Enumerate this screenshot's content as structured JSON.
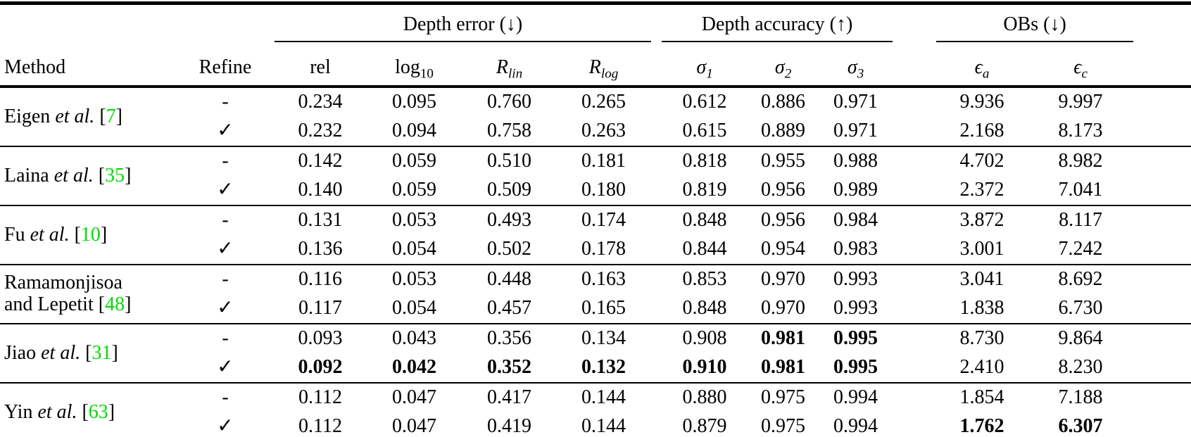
{
  "page": {
    "background": "#ffffff",
    "text_color": "#000000",
    "cite_color": "#00dd00",
    "rule_color": "#000000"
  },
  "table": {
    "header": {
      "method_label": "Method",
      "refine_label": "Refine",
      "groups": [
        {
          "label": "Depth error (↓)",
          "span": 4
        },
        {
          "label": "Depth accuracy (↑)",
          "span": 3
        },
        {
          "label": "OBs (↓)",
          "span": 2
        }
      ],
      "sub_columns": [
        {
          "id": "rel",
          "base": "rel",
          "sub": "",
          "italic": false
        },
        {
          "id": "log10",
          "base": "log",
          "sub": "10",
          "italic": false
        },
        {
          "id": "r-lin",
          "base": "R",
          "sub": "lin",
          "italic": true
        },
        {
          "id": "r-log",
          "base": "R",
          "sub": "log",
          "italic": true
        },
        {
          "id": "sigma1",
          "base": "σ",
          "sub": "1",
          "italic": true
        },
        {
          "id": "sigma2",
          "base": "σ",
          "sub": "2",
          "italic": true
        },
        {
          "id": "sigma3",
          "base": "σ",
          "sub": "3",
          "italic": true
        },
        {
          "id": "eps-a",
          "base": "ϵ",
          "sub": "a",
          "italic": true
        },
        {
          "id": "eps-c",
          "base": "ϵ",
          "sub": "c",
          "italic": true
        }
      ]
    },
    "groups": [
      {
        "method_parts": [
          {
            "text": "Eigen ",
            "style": "normal"
          },
          {
            "text": "et al.",
            "style": "italic"
          },
          {
            "text": " [",
            "style": "normal"
          },
          {
            "text": "7",
            "style": "cite"
          },
          {
            "text": "]",
            "style": "normal"
          }
        ],
        "rows": [
          {
            "refine": "-",
            "values": [
              "0.234",
              "0.095",
              "0.760",
              "0.265",
              "0.612",
              "0.886",
              "0.971",
              "9.936",
              "9.997"
            ],
            "bold": []
          },
          {
            "refine": "✓",
            "values": [
              "0.232",
              "0.094",
              "0.758",
              "0.263",
              "0.615",
              "0.889",
              "0.971",
              "2.168",
              "8.173"
            ],
            "bold": []
          }
        ]
      },
      {
        "method_parts": [
          {
            "text": "Laina ",
            "style": "normal"
          },
          {
            "text": "et al.",
            "style": "italic"
          },
          {
            "text": " [",
            "style": "normal"
          },
          {
            "text": "35",
            "style": "cite"
          },
          {
            "text": "]",
            "style": "normal"
          }
        ],
        "rows": [
          {
            "refine": "-",
            "values": [
              "0.142",
              "0.059",
              "0.510",
              "0.181",
              "0.818",
              "0.955",
              "0.988",
              "4.702",
              "8.982"
            ],
            "bold": []
          },
          {
            "refine": "✓",
            "values": [
              "0.140",
              "0.059",
              "0.509",
              "0.180",
              "0.819",
              "0.956",
              "0.989",
              "2.372",
              "7.041"
            ],
            "bold": []
          }
        ]
      },
      {
        "method_parts": [
          {
            "text": "Fu ",
            "style": "normal"
          },
          {
            "text": "et al.",
            "style": "italic"
          },
          {
            "text": " [",
            "style": "normal"
          },
          {
            "text": "10",
            "style": "cite"
          },
          {
            "text": "]",
            "style": "normal"
          }
        ],
        "rows": [
          {
            "refine": "-",
            "values": [
              "0.131",
              "0.053",
              "0.493",
              "0.174",
              "0.848",
              "0.956",
              "0.984",
              "3.872",
              "8.117"
            ],
            "bold": []
          },
          {
            "refine": "✓",
            "values": [
              "0.136",
              "0.054",
              "0.502",
              "0.178",
              "0.844",
              "0.954",
              "0.983",
              "3.001",
              "7.242"
            ],
            "bold": []
          }
        ]
      },
      {
        "method_parts": [
          {
            "text": "Ramamonjisoa",
            "style": "normal"
          },
          {
            "text": "",
            "style": "break"
          },
          {
            "text": "and Lepetit [",
            "style": "normal"
          },
          {
            "text": "48",
            "style": "cite"
          },
          {
            "text": "]",
            "style": "normal"
          }
        ],
        "rows": [
          {
            "refine": "-",
            "values": [
              "0.116",
              "0.053",
              "0.448",
              "0.163",
              "0.853",
              "0.970",
              "0.993",
              "3.041",
              "8.692"
            ],
            "bold": []
          },
          {
            "refine": "✓",
            "values": [
              "0.117",
              "0.054",
              "0.457",
              "0.165",
              "0.848",
              "0.970",
              "0.993",
              "1.838",
              "6.730"
            ],
            "bold": []
          }
        ]
      },
      {
        "method_parts": [
          {
            "text": "Jiao ",
            "style": "normal"
          },
          {
            "text": "et al.",
            "style": "italic"
          },
          {
            "text": " [",
            "style": "normal"
          },
          {
            "text": "31",
            "style": "cite"
          },
          {
            "text": "]",
            "style": "normal"
          }
        ],
        "rows": [
          {
            "refine": "-",
            "values": [
              "0.093",
              "0.043",
              "0.356",
              "0.134",
              "0.908",
              "0.981",
              "0.995",
              "8.730",
              "9.864"
            ],
            "bold": [
              5,
              6
            ]
          },
          {
            "refine": "✓",
            "values": [
              "0.092",
              "0.042",
              "0.352",
              "0.132",
              "0.910",
              "0.981",
              "0.995",
              "2.410",
              "8.230"
            ],
            "bold": [
              0,
              1,
              2,
              3,
              4,
              5,
              6
            ]
          }
        ]
      },
      {
        "method_parts": [
          {
            "text": "Yin ",
            "style": "normal"
          },
          {
            "text": "et al.",
            "style": "italic"
          },
          {
            "text": " [",
            "style": "normal"
          },
          {
            "text": "63",
            "style": "cite"
          },
          {
            "text": "]",
            "style": "normal"
          }
        ],
        "rows": [
          {
            "refine": "-",
            "values": [
              "0.112",
              "0.047",
              "0.417",
              "0.144",
              "0.880",
              "0.975",
              "0.994",
              "1.854",
              "7.188"
            ],
            "bold": []
          },
          {
            "refine": "✓",
            "values": [
              "0.112",
              "0.047",
              "0.419",
              "0.144",
              "0.879",
              "0.975",
              "0.994",
              "1.762",
              "6.307"
            ],
            "bold": [
              7,
              8
            ]
          }
        ]
      }
    ]
  }
}
